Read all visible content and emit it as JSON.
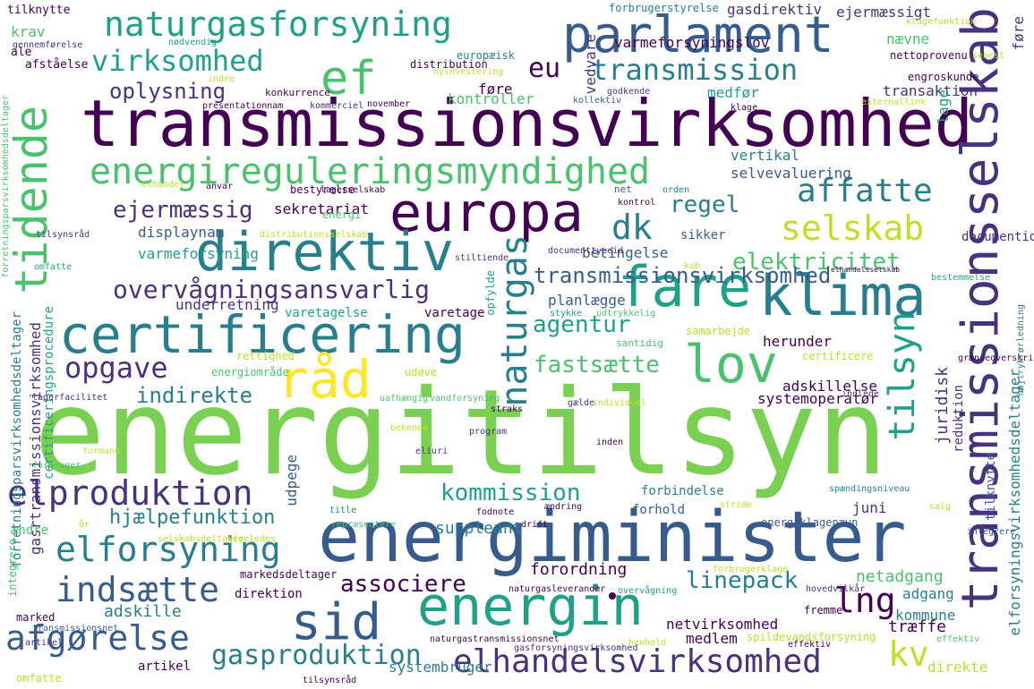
{
  "palette": {
    "purple": "#440154",
    "indigo": "#46337e",
    "blue": "#365c8d",
    "teal_blue": "#277f8e",
    "teal": "#1fa187",
    "green": "#4ac16d",
    "lime": "#7ad151",
    "yellow_green": "#bddf26",
    "yellow": "#fde725"
  },
  "words": [
    "energitilsyn",
    "energiminister",
    "transmissionsvirksomhed",
    "europa",
    "parlament",
    "direktiv",
    "certificering",
    "fare",
    "klima",
    "energin",
    "transmissionsselskab",
    "tidende",
    "ef",
    "naturgasforsyning",
    "energireguleringsmyndighed",
    "sid",
    "lov",
    "råd",
    "elhandelsvirksomhed",
    "elproduktion",
    "elforsyning",
    "indsætte",
    "afgørelse",
    "gasproduktion",
    "selskab",
    "affatte",
    "virksomhed",
    "transmission",
    "eu",
    "dk",
    "naturgas",
    "tilsyn",
    "overvågningsansvarlig",
    "opgave",
    "lng",
    "kv",
    "elektricitet",
    "regel",
    "ejermæssig",
    "oplysning",
    "agentur",
    "fastsætte",
    "indirekte",
    "kommission",
    "associere",
    "linepack",
    "hjælpefunktion",
    "transmissionsvirksomhed",
    "elforsyningsvirksomhedsdeltager",
    "tilknytte",
    "krav",
    "ale",
    "afståelse",
    "gennemførelse",
    "nødvendig",
    "europæisk",
    "distribution",
    "forbrugerstyrelse",
    "gasdirektiv",
    "ejermæssigt",
    "klagefunktion",
    "senest",
    "varmeforsyningslov",
    "nævne",
    "vedvare",
    "nettoprovenu",
    "føre",
    "kontroller",
    "transaktion",
    "lage",
    "medfør",
    "engroskunde",
    "klage",
    "kollektiv",
    "godkende",
    "november",
    "nyinvestering",
    "konkurrence",
    "presentationnam",
    "kommerciel",
    "indre",
    "ankenævn",
    "elektricitetsudveksling",
    "vertikal",
    "selvevaluering",
    "net",
    "bestyrelse",
    "lagerselskab",
    "anvar",
    "elhandel",
    "orden",
    "kontrol",
    "sekretariat",
    "energi",
    "displaynam",
    "varmeforsyning",
    "betingelse",
    "sikker",
    "documentid",
    "documenttypeid",
    "kab",
    "stiltiende",
    "del",
    "opfylde",
    "planlægge",
    "stykke",
    "udtrykkelig",
    "underretning",
    "varetagelse",
    "varetage",
    "santidig",
    "samarbejde",
    "herunder",
    "certificere",
    "rettighed",
    "energiområde",
    "udøve",
    "adskillelse",
    "systemoperatør",
    "indlede",
    "juridisk",
    "reduktion",
    "grænseoverskridende",
    "højtrykrørledning",
    "forretningsparsvirksomhedsdeltager",
    "gasrtransmissionsvirksomhed",
    "certificeringsprocedure",
    "lagerfacilitet",
    "uafhængig",
    "vandforsyning",
    "straks",
    "gælde",
    "individuel",
    "program",
    "bekende",
    "inden",
    "eliuri",
    "forbruger",
    "formand",
    "title",
    "juni",
    "udpege",
    "fodnote",
    "ændring",
    "stride",
    "forbindelse",
    "forhold",
    "suppleant",
    "drift",
    "repræsentere",
    "energiklagenævn",
    "spændingsniveau",
    "salg",
    "ændre",
    "ligeledes",
    "år",
    "selskabsdeltager",
    "netadgang",
    "adgang",
    "forordning",
    "forbrugerklage",
    "direktion",
    "markedsdeltager",
    "naturgasleverandør",
    "overvågning",
    "hovedvilkår",
    "kommune",
    "træffe",
    "fremme",
    "netvirksomhed",
    "medlem",
    "spildevandsforsyning",
    "henhold",
    "effektiv",
    "integrere",
    "marked",
    "statstilskud",
    "adskille",
    "transmissionsnet",
    "naturgastransmissionsnet",
    "gasforsyningsvirksomhed",
    "artikel",
    "systembruger",
    "direkte",
    "omfatte",
    "tilsynsråd",
    "distributionsselskab",
    "shortnam",
    "bestemmelse",
    "elhandelsselskab",
    "el",
    "udførende",
    "externallink",
    "kommunikationsproces",
    "gasforsyningsdirektiv",
    "elsikkerhedsnet",
    "udstille"
  ]
}
